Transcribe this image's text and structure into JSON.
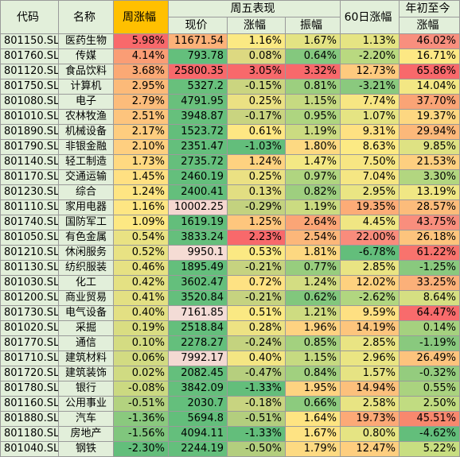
{
  "headers": {
    "code": "代码",
    "name": "名称",
    "week_change": "周涨幅",
    "friday_group": "周五表现",
    "price": "现价",
    "change": "涨幅",
    "amplitude": "振幅",
    "d60": "60日涨幅",
    "ytd_line1": "年初至今",
    "ytd_line2": "涨幅"
  },
  "colors": {
    "header_bg": "#e2efda",
    "highlight_header": "#ffc000",
    "grid": "#9a9a9a"
  },
  "rows": [
    {
      "code": "801150.SL",
      "name": "医药生物",
      "week": "5.98%",
      "price": "11671.54",
      "change": "1.16%",
      "amp": "1.67%",
      "d60": "1.13%",
      "ytd": "46.02%",
      "bg": [
        "#f8696b",
        "#fcb279",
        "#fbe983",
        "#e3e383",
        "#e5e483",
        "#f88f7e"
      ]
    },
    {
      "code": "801760.SL",
      "name": "传媒",
      "week": "4.14%",
      "price": "793.78",
      "change": "0.08%",
      "amp": "0.64%",
      "d60": "-2.20%",
      "ytd": "16.71%",
      "bg": [
        "#fa9d75",
        "#64bf7c",
        "#ddd981",
        "#84c87e",
        "#b9d980",
        "#fde884"
      ]
    },
    {
      "code": "801120.SL",
      "name": "食品饮料",
      "week": "3.68%",
      "price": "25800.35",
      "change": "3.05%",
      "amp": "3.32%",
      "d60": "12.73%",
      "ytd": "65.86%",
      "bg": [
        "#fba975",
        "#f8696b",
        "#f8696b",
        "#f8696b",
        "#feca7e",
        "#f8696b"
      ]
    },
    {
      "code": "801750.SL",
      "name": "计算机",
      "week": "2.95%",
      "price": "5327.2",
      "change": "-0.15%",
      "amp": "0.81%",
      "d60": "-3.21%",
      "ytd": "14.04%",
      "bg": [
        "#fcba79",
        "#68c07c",
        "#cbd580",
        "#9ccf7f",
        "#8ac97e",
        "#f3e784"
      ]
    },
    {
      "code": "801080.SL",
      "name": "电子",
      "week": "2.79%",
      "price": "4791.95",
      "change": "0.25%",
      "amp": "1.15%",
      "d60": "7.74%",
      "ytd": "37.70%",
      "bg": [
        "#fcbc7b",
        "#69c07c",
        "#ebe183",
        "#c6da81",
        "#f7e683",
        "#faa476"
      ]
    },
    {
      "code": "801010.SL",
      "name": "农林牧渔",
      "week": "2.51%",
      "price": "3948.87",
      "change": "-0.17%",
      "amp": "0.95%",
      "d60": "1.07%",
      "ytd": "19.37%",
      "bg": [
        "#fdc47d",
        "#66c07c",
        "#c9d480",
        "#aed580",
        "#e5e483",
        "#fdd781"
      ]
    },
    {
      "code": "801890.SL",
      "name": "机械设备",
      "week": "2.17%",
      "price": "1523.72",
      "change": "0.61%",
      "amp": "1.19%",
      "d60": "9.31%",
      "ytd": "29.94%",
      "bg": [
        "#fecd7f",
        "#63be7b",
        "#fee783",
        "#cbdb81",
        "#fee182",
        "#fcb87a"
      ]
    },
    {
      "code": "801790.SL",
      "name": "非银金融",
      "week": "2.10%",
      "price": "2351.47",
      "change": "-1.03%",
      "amp": "1.80%",
      "d60": "8.63%",
      "ytd": "9.85%",
      "bg": [
        "#fecf80",
        "#64bf7c",
        "#63be7b",
        "#fdd982",
        "#fcea84",
        "#dee283"
      ]
    },
    {
      "code": "801140.SL",
      "name": "轻工制造",
      "week": "1.73%",
      "price": "2735.72",
      "change": "1.24%",
      "amp": "1.47%",
      "d60": "7.50%",
      "ytd": "21.53%",
      "bg": [
        "#ffd981",
        "#65bf7c",
        "#fed280",
        "#f3e884",
        "#f7e683",
        "#fdcf80"
      ]
    },
    {
      "code": "801170.SL",
      "name": "交通运输",
      "week": "1.45%",
      "price": "2460.19",
      "change": "0.25%",
      "amp": "0.97%",
      "d60": "7.04%",
      "ytd": "3.30%",
      "bg": [
        "#ffe082",
        "#64bf7c",
        "#ebe183",
        "#b0d580",
        "#f5e683",
        "#b2d680"
      ]
    },
    {
      "code": "801230.SL",
      "name": "综合",
      "week": "1.24%",
      "price": "2400.41",
      "change": "0.13%",
      "amp": "0.82%",
      "d60": "2.95%",
      "ytd": "13.19%",
      "bg": [
        "#fee583",
        "#64bf7c",
        "#e2de82",
        "#9ecf7f",
        "#eae583",
        "#f0e784"
      ]
    },
    {
      "code": "801110.SL",
      "name": "家用电器",
      "week": "1.16%",
      "price": "10002.25",
      "change": "-0.29%",
      "amp": "1.19%",
      "d60": "19.35%",
      "ytd": "28.57%",
      "bg": [
        "#fee683",
        "#f5d7d0",
        "#c3d27f",
        "#cbdb81",
        "#fcac77",
        "#fcbc7b"
      ]
    },
    {
      "code": "801740.SL",
      "name": "国防军工",
      "week": "1.09%",
      "price": "1619.19",
      "change": "1.25%",
      "amp": "2.64%",
      "d60": "4.45%",
      "ytd": "43.75%",
      "bg": [
        "#fde883",
        "#63be7b",
        "#fec67d",
        "#fba576",
        "#f0e683",
        "#f98e7d"
      ]
    },
    {
      "code": "801050.SL",
      "name": "有色金属",
      "week": "0.54%",
      "price": "3833.24",
      "change": "2.23%",
      "amp": "2.54%",
      "d60": "22.00%",
      "ytd": "26.18%",
      "bg": [
        "#e9e283",
        "#65bf7c",
        "#f8696b",
        "#fcb77a",
        "#f98c7c",
        "#fdc47d"
      ]
    },
    {
      "code": "801210.SL",
      "name": "休闲服务",
      "week": "0.52%",
      "price": "9950.1",
      "change": "0.53%",
      "amp": "1.81%",
      "d60": "-6.78%",
      "ytd": "61.22%",
      "bg": [
        "#e8e283",
        "#f5dcd4",
        "#fbe983",
        "#fdd881",
        "#63be7b",
        "#f8736d"
      ]
    },
    {
      "code": "801130.SL",
      "name": "纺织服装",
      "week": "0.46%",
      "price": "1895.49",
      "change": "-0.21%",
      "amp": "0.77%",
      "d60": "2.85%",
      "ytd": "-1.25%",
      "bg": [
        "#e6e183",
        "#64bf7c",
        "#c6d380",
        "#97cd7e",
        "#e9e483",
        "#89c97e"
      ]
    },
    {
      "code": "801030.SL",
      "name": "化工",
      "week": "0.42%",
      "price": "3602.47",
      "change": "0.72%",
      "amp": "1.24%",
      "d60": "12.02%",
      "ytd": "33.25%",
      "bg": [
        "#e4e183",
        "#64bf7c",
        "#fee283",
        "#d3dd82",
        "#fed17f",
        "#fbb079"
      ]
    },
    {
      "code": "801200.SL",
      "name": "商业贸易",
      "week": "0.41%",
      "price": "3520.84",
      "change": "-0.21%",
      "amp": "0.62%",
      "d60": "-2.62%",
      "ytd": "8.64%",
      "bg": [
        "#e3e083",
        "#64bf7c",
        "#c6d380",
        "#81c77d",
        "#b1d680",
        "#d5df82"
      ]
    },
    {
      "code": "801730.SL",
      "name": "电气设备",
      "week": "0.40%",
      "price": "7161.85",
      "change": "0.51%",
      "amp": "1.21%",
      "d60": "9.59%",
      "ytd": "64.47%",
      "bg": [
        "#e3e083",
        "#f3dcd6",
        "#fae983",
        "#cedc81",
        "#fee082",
        "#f86b6c"
      ]
    },
    {
      "code": "801020.SL",
      "name": "采掘",
      "week": "0.19%",
      "price": "2518.84",
      "change": "0.28%",
      "amp": "1.96%",
      "d60": "14.19%",
      "ytd": "0.14%",
      "bg": [
        "#d9dd82",
        "#64bf7c",
        "#ede283",
        "#fed281",
        "#fdc57d",
        "#a5d17f"
      ]
    },
    {
      "code": "801770.SL",
      "name": "通信",
      "week": "0.10%",
      "price": "2278.27",
      "change": "-0.24%",
      "amp": "0.85%",
      "d60": "2.85%",
      "ytd": "-1.19%",
      "bg": [
        "#d4dc82",
        "#64bf7c",
        "#c4d37f",
        "#a3d17f",
        "#e9e483",
        "#89c97e"
      ]
    },
    {
      "code": "801710.SL",
      "name": "建筑材料",
      "week": "0.06%",
      "price": "7992.17",
      "change": "0.40%",
      "amp": "1.15%",
      "d60": "2.96%",
      "ytd": "26.49%",
      "bg": [
        "#d2db82",
        "#f3d9d2",
        "#f4e683",
        "#c6da81",
        "#eae583",
        "#fdc37d"
      ]
    },
    {
      "code": "801720.SL",
      "name": "建筑装饰",
      "week": "0.02%",
      "price": "2082.45",
      "change": "-0.47%",
      "amp": "0.84%",
      "d60": "1.57%",
      "ytd": "-0.32%",
      "bg": [
        "#d0db82",
        "#64bf7c",
        "#b6cf7e",
        "#a1d07f",
        "#e6e383",
        "#94cc7e"
      ]
    },
    {
      "code": "801780.SL",
      "name": "银行",
      "week": "-0.08%",
      "price": "3842.09",
      "change": "-1.33%",
      "amp": "1.95%",
      "d60": "14.94%",
      "ytd": "0.55%",
      "bg": [
        "#cbd981",
        "#65bf7c",
        "#63be7b",
        "#fed381",
        "#fcc07c",
        "#aad37f"
      ]
    },
    {
      "code": "801160.SL",
      "name": "公用事业",
      "week": "-0.51%",
      "price": "2030.7",
      "change": "-0.18%",
      "amp": "0.66%",
      "d60": "2.58%",
      "ytd": "2.50%",
      "bg": [
        "#b3d27f",
        "#64bf7c",
        "#c8d480",
        "#8ccb7e",
        "#e8e483",
        "#c1dc81"
      ]
    },
    {
      "code": "801880.SL",
      "name": "汽车",
      "week": "-1.36%",
      "price": "5694.8",
      "change": "-0.51%",
      "amp": "1.64%",
      "d60": "19.73%",
      "ytd": "45.51%",
      "bg": [
        "#8ac97e",
        "#63be7b",
        "#b3ce7e",
        "#fee482",
        "#fca977",
        "#f8886e"
      ]
    },
    {
      "code": "801180.SL",
      "name": "房地产",
      "week": "-1.56%",
      "price": "4094.11",
      "change": "-1.33%",
      "amp": "1.67%",
      "d60": "0.80%",
      "ytd": "-4.62%",
      "bg": [
        "#80c67d",
        "#64bf7c",
        "#63be7b",
        "#fee383",
        "#e5e483",
        "#63be7b"
      ]
    },
    {
      "code": "801040.SL",
      "name": "钢铁",
      "week": "-2.30%",
      "price": "2244.19",
      "change": "-0.50%",
      "amp": "1.79%",
      "d60": "12.47%",
      "ytd": "5.22%",
      "bg": [
        "#63be7b",
        "#64bf7c",
        "#b3ce7e",
        "#fdda82",
        "#fece7f",
        "#c8de81"
      ]
    }
  ]
}
